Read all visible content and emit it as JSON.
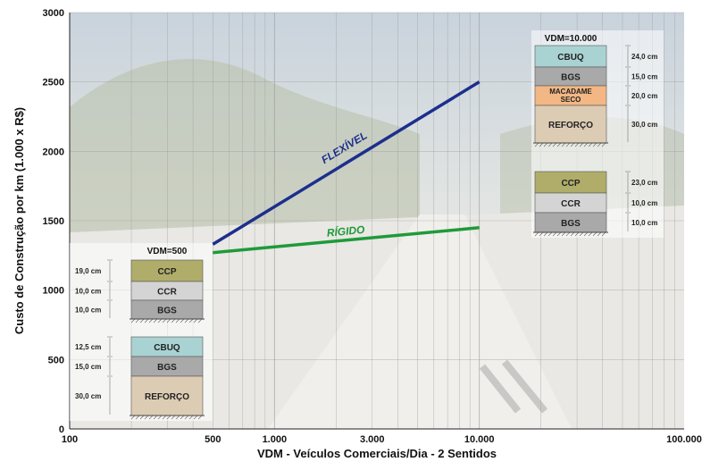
{
  "chart_data": {
    "type": "line",
    "xlabel": "VDM - Veículos Comerciais/Dia - 2 Sentidos",
    "ylabel": "Custo de Construção por km (1.000 x R$)",
    "x_scale": "log",
    "xlim": [
      100,
      100000
    ],
    "ylim": [
      0,
      3000
    ],
    "x_ticks": [
      {
        "value": 100,
        "label": "100"
      },
      {
        "value": 500,
        "label": "500"
      },
      {
        "value": 1000,
        "label": "1.000"
      },
      {
        "value": 3000,
        "label": "3.000"
      },
      {
        "value": 10000,
        "label": "10.000"
      },
      {
        "value": 100000,
        "label": "100.000"
      }
    ],
    "y_ticks": [
      {
        "value": 0,
        "label": "0"
      },
      {
        "value": 500,
        "label": "500"
      },
      {
        "value": 1000,
        "label": "1000"
      },
      {
        "value": 1500,
        "label": "1500"
      },
      {
        "value": 2000,
        "label": "2000"
      },
      {
        "value": 2500,
        "label": "2500"
      },
      {
        "value": 3000,
        "label": "3000"
      }
    ],
    "grid": true,
    "series": [
      {
        "name": "FLEXÍVEL",
        "color": "#1d2f8c",
        "x": [
          500,
          10000
        ],
        "y": [
          1330,
          2500
        ]
      },
      {
        "name": "RÍGIDO",
        "color": "#1f9a3a",
        "x": [
          500,
          10000
        ],
        "y": [
          1270,
          1450
        ]
      }
    ],
    "annotations": [
      {
        "title": "VDM=500",
        "side": "left",
        "stacks": [
          {
            "name": "rigid-500",
            "layers": [
              {
                "label": "CCP",
                "thickness": "19,0 cm",
                "color": "#b0ad6a"
              },
              {
                "label": "CCR",
                "thickness": "10,0 cm",
                "color": "#d4d4d4"
              },
              {
                "label": "BGS",
                "thickness": "10,0 cm",
                "color": "#a9a9a9"
              }
            ]
          },
          {
            "name": "flexible-500",
            "layers": [
              {
                "label": "CBUQ",
                "thickness": "12,5 cm",
                "color": "#a9d3d2"
              },
              {
                "label": "BGS",
                "thickness": "15,0 cm",
                "color": "#a9a9a9"
              },
              {
                "label": "REFORÇO",
                "thickness": "30,0  cm",
                "color": "#ddccb4"
              }
            ]
          }
        ]
      },
      {
        "title": "VDM=10.000",
        "side": "right",
        "stacks": [
          {
            "name": "flexible-10000",
            "layers": [
              {
                "label": "CBUQ",
                "thickness": "24,0 cm",
                "color": "#a9d3d2"
              },
              {
                "label": "BGS",
                "thickness": "15,0 cm",
                "color": "#a9a9a9"
              },
              {
                "label": "MACADAME SECO",
                "thickness": "20,0 cm",
                "color": "#f2b784"
              },
              {
                "label": "REFORÇO",
                "thickness": "30,0 cm",
                "color": "#ddccb4"
              }
            ]
          },
          {
            "name": "rigid-10000",
            "layers": [
              {
                "label": "CCP",
                "thickness": "23,0 cm",
                "color": "#b0ad6a"
              },
              {
                "label": "CCR",
                "thickness": "10,0 cm",
                "color": "#d4d4d4"
              },
              {
                "label": "BGS",
                "thickness": "10,0 cm",
                "color": "#a9a9a9"
              }
            ]
          }
        ]
      }
    ]
  }
}
